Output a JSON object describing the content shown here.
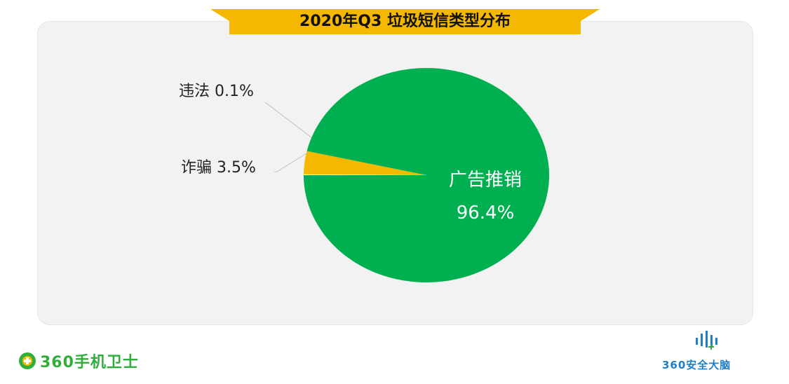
{
  "title": "2020年Q3 垃圾短信类型分布",
  "colors": {
    "banner": "#f5b800",
    "panel": "#f2f2f2",
    "slice_main": "#00b050",
    "slice_fraud": "#f5b800",
    "slice_illegal": "#ffffff",
    "leader": "#bfbfbf",
    "brand_green": "#2fae3b",
    "brand_blue": "#1e7fc8"
  },
  "chart_data": {
    "type": "pie",
    "slices": [
      {
        "label": "广告推销",
        "value": 96.4,
        "value_text": "96.4%",
        "color": "#00b050"
      },
      {
        "label": "违法",
        "value": 0.1,
        "value_text": "0.1%",
        "color": "#ffffff"
      },
      {
        "label": "诈骗",
        "value": 3.5,
        "value_text": "3.5%",
        "color": "#f5b800"
      }
    ],
    "external_labels": [
      "违法 0.1%",
      "诈骗 3.5%"
    ]
  },
  "brand": {
    "left": {
      "icon": "plus-circle-icon",
      "text": "360手机卫士"
    },
    "right": {
      "icon": "signal-bars-icon",
      "text": "360安全大脑"
    }
  }
}
